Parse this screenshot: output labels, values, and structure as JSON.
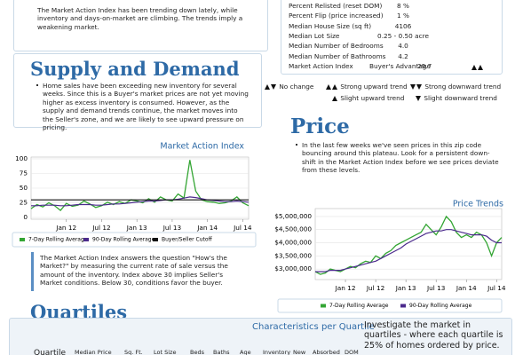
{
  "summary": "The Market Action Index has been trending down lately, while inventory and days-on-market are climbing. The trends imply a weakening market.",
  "market_table": {
    "rows": [
      [
        "Percent Relisted (reset DOM)",
        "8 %"
      ],
      [
        "Percent Flip (price increased)",
        "1 %"
      ],
      [
        "Median House Size (sq ft)",
        "4106"
      ],
      [
        "Median Lot Size",
        "0.25 - 0.50 acre"
      ],
      [
        "Median Number of Bedrooms",
        "4.0"
      ],
      [
        "Median Number of Bathrooms",
        "4.2"
      ],
      [
        "Market Action Index",
        "Buyer's Advantage",
        "29.7"
      ]
    ]
  },
  "trend_legend": [
    "No change",
    "Strong upward trend",
    "Strong downward trend",
    "Slight upward trend",
    "Slight downward trend"
  ],
  "supply": {
    "heading": "Supply and Demand",
    "text": "Home sales have been exceeding new inventory for several weeks. Since this is a Buyer's market prices are not yet moving higher as excess inventory is consumed.  However, as the supply and demand trends continue, the market moves into the Seller's zone, and we are likely to see upward pressure on pricing.",
    "note": "The Market Action Index answers the question \"How's the Market?\" by measuring the current rate of sale versus the amount of the inventory.  Index above 30 implies Seller's Market conditions. Below 30, conditions favor the buyer."
  },
  "price": {
    "heading": "Price",
    "text": "In the last few weeks we've seen prices in this zip code bouncing around this plateau. Look for a persistent down-shift in the Market Action Index before we see prices deviate from these levels."
  },
  "quartiles": {
    "heading": "Quartiles",
    "title": "Characteristics per Quartile",
    "description": "Investigate the market in quartiles - where each quartile is 25% of homes ordered by price.",
    "columns": [
      "Quartile",
      "Median Price",
      "Sq. Ft.",
      "Lot Size",
      "Beds",
      "Baths",
      "Age",
      "Inventory",
      "New",
      "Absorbed",
      "DOM"
    ]
  },
  "chart_data": [
    {
      "type": "line",
      "title": "Market Action Index",
      "categories": [
        null,
        null,
        null,
        null,
        null,
        null,
        "Jan 12",
        null,
        null,
        null,
        null,
        null,
        "Jul 12",
        null,
        null,
        null,
        null,
        null,
        "Jan 13",
        null,
        null,
        null,
        null,
        null,
        "Jul 13",
        null,
        null,
        null,
        null,
        null,
        "Jan 14",
        null,
        null,
        null,
        null,
        null,
        "Jul 14",
        null
      ],
      "series": [
        {
          "name": "7-Day Rolling Average",
          "color": "#33a533",
          "values": [
            15,
            22,
            18,
            25,
            20,
            12,
            24,
            19,
            21,
            28,
            23,
            17,
            20,
            26,
            22,
            27,
            24,
            30,
            28,
            25,
            32,
            26,
            35,
            30,
            28,
            40,
            33,
            98,
            45,
            30,
            27,
            26,
            24,
            25,
            28,
            35,
            25,
            20
          ]
        },
        {
          "name": "90-Day Rolling Average",
          "color": "#4b2a8c",
          "values": [
            20,
            20,
            21,
            21,
            21,
            20,
            20,
            21,
            22,
            22,
            22,
            21,
            21,
            22,
            23,
            23,
            24,
            25,
            26,
            27,
            28,
            28,
            29,
            30,
            30,
            31,
            33,
            35,
            34,
            32,
            30,
            29,
            28,
            27,
            27,
            28,
            27,
            26
          ]
        },
        {
          "name": "Buyer/Seller Cutoff",
          "color": "#111111",
          "values": [
            30,
            30,
            30,
            30,
            30,
            30,
            30,
            30,
            30,
            30,
            30,
            30,
            30,
            30,
            30,
            30,
            30,
            30,
            30,
            30,
            30,
            30,
            30,
            30,
            30,
            30,
            30,
            30,
            30,
            30,
            30,
            30,
            30,
            30,
            30,
            30,
            30,
            30
          ]
        }
      ],
      "ylim": [
        -3,
        103
      ],
      "yticks": [
        0,
        25,
        50,
        75,
        100
      ],
      "grid": true
    },
    {
      "type": "line",
      "title": "Price Trends",
      "categories": [
        null,
        null,
        null,
        null,
        null,
        null,
        "Jan 12",
        null,
        null,
        null,
        null,
        null,
        "Jul 12",
        null,
        null,
        null,
        null,
        null,
        "Jan 13",
        null,
        null,
        null,
        null,
        null,
        "Jul 13",
        null,
        null,
        null,
        null,
        null,
        "Jan 14",
        null,
        null,
        null,
        null,
        null,
        "Jul 14",
        null
      ],
      "series": [
        {
          "name": "7-Day Rolling Average",
          "color": "#33a533",
          "values": [
            2900000,
            2800000,
            2850000,
            3000000,
            2950000,
            2900000,
            3000000,
            3100000,
            3050000,
            3200000,
            3300000,
            3250000,
            3500000,
            3400000,
            3600000,
            3700000,
            3900000,
            4000000,
            4100000,
            4200000,
            4300000,
            4400000,
            4700000,
            4500000,
            4300000,
            4600000,
            5000000,
            4800000,
            4400000,
            4200000,
            4300000,
            4200000,
            4400000,
            4300000,
            4000000,
            3500000,
            4000000,
            4200000
          ]
        },
        {
          "name": "90-Day Rolling Average",
          "color": "#4b2a8c",
          "values": [
            2900000,
            2900000,
            2900000,
            2950000,
            2950000,
            2950000,
            3000000,
            3050000,
            3100000,
            3150000,
            3200000,
            3250000,
            3300000,
            3400000,
            3500000,
            3600000,
            3700000,
            3800000,
            3950000,
            4050000,
            4150000,
            4250000,
            4350000,
            4400000,
            4450000,
            4450000,
            4500000,
            4500000,
            4450000,
            4400000,
            4350000,
            4300000,
            4300000,
            4300000,
            4250000,
            4100000,
            4000000,
            4000000
          ]
        }
      ],
      "ylim": [
        2600000,
        5300000
      ],
      "yticks": [
        {
          "value": 3000000,
          "label": "$3,000,000"
        },
        {
          "value": 3500000,
          "label": "$3,500,000"
        },
        {
          "value": 4000000,
          "label": "$4,000,000"
        },
        {
          "value": 4500000,
          "label": "$4,500,000"
        },
        {
          "value": 5000000,
          "label": "$5,000,000"
        }
      ],
      "grid": true
    }
  ]
}
